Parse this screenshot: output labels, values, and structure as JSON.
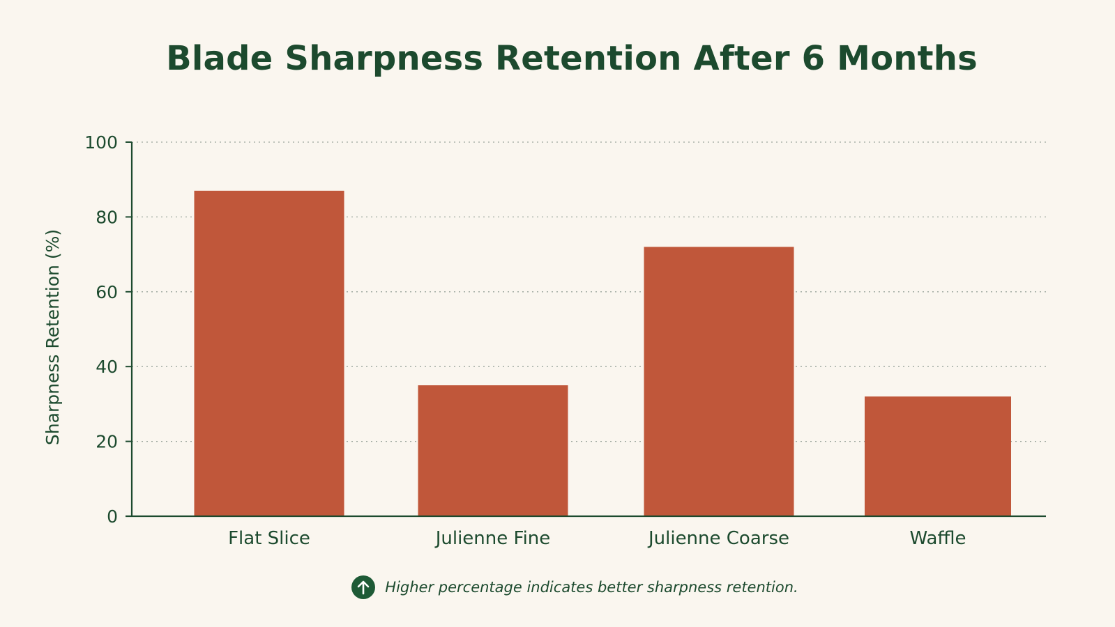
{
  "chart_data": {
    "type": "bar",
    "title": "Blade Sharpness Retention After 6 Months",
    "ylabel": "Sharpness Retention (%)",
    "xlabel": "",
    "categories": [
      "Flat Slice",
      "Julienne Fine",
      "Julienne Coarse",
      "Waffle"
    ],
    "values": [
      87,
      35,
      72,
      32
    ],
    "ylim": [
      0,
      100
    ],
    "yticks": [
      0,
      20,
      40,
      60,
      80,
      100
    ],
    "grid": true,
    "bar_color": "#c0573a",
    "axis_color": "#1c4a2e"
  },
  "footnote": {
    "icon": "arrow-up-icon",
    "text": "Higher percentage indicates better sharpness retention."
  }
}
